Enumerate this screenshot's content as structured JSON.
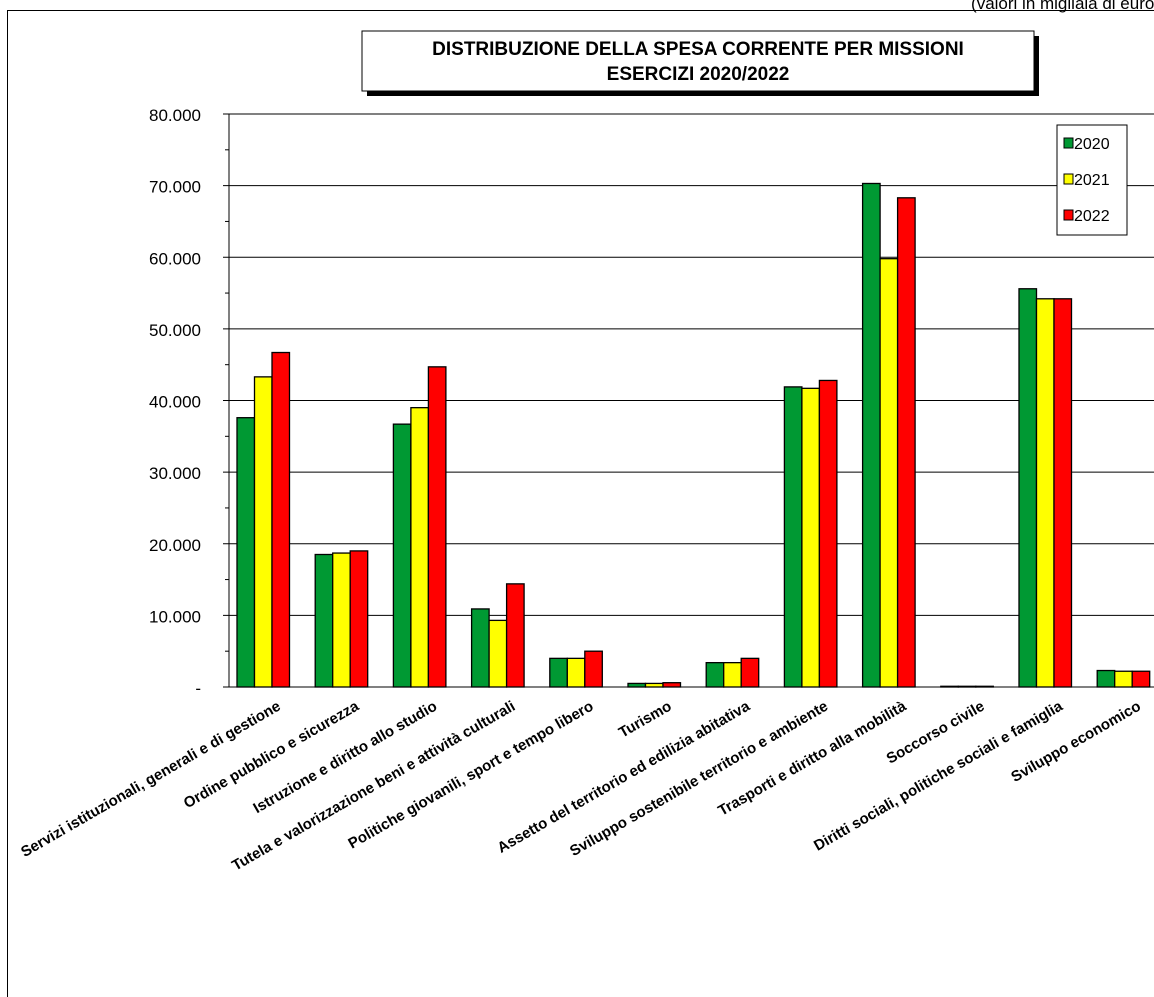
{
  "note": "(valori in migliaia di euro)",
  "chart_data": {
    "type": "bar",
    "title": "DISTRIBUZIONE DELLA SPESA CORRENTE PER MISSIONI\nESERCIZI 2020/2022",
    "xlabel": "",
    "ylabel": "",
    "ylim": [
      0,
      80000
    ],
    "yticks": [
      0,
      10000,
      20000,
      30000,
      40000,
      50000,
      60000,
      70000,
      80000
    ],
    "ytick_labels": [
      "-",
      "10.000",
      "20.000",
      "30.000",
      "40.000",
      "50.000",
      "60.000",
      "70.000",
      "80.000"
    ],
    "grid": true,
    "legend_position": "top-right",
    "categories": [
      "Servizi istituzionali, generali e di gestione",
      "Ordine pubblico e sicurezza",
      "Istruzione e diritto allo studio",
      "Tutela e valorizzazione beni e attività culturali",
      "Politiche giovanili, sport e tempo libero",
      "Turismo",
      "Assetto del territorio ed edilizia abitativa",
      "Sviluppo sostenibile territorio e ambiente",
      "Trasporti e diritto alla mobilità",
      "Soccorso civile",
      "Diritti sociali, politiche sociali e famiglia",
      "Sviluppo economico"
    ],
    "series": [
      {
        "name": "2020",
        "color": "#009933",
        "values": [
          37600,
          18500,
          36700,
          10900,
          4000,
          500,
          3400,
          41900,
          70300,
          100,
          55600,
          2300
        ]
      },
      {
        "name": "2021",
        "color": "#ffff00",
        "values": [
          43300,
          18700,
          39000,
          9300,
          4000,
          500,
          3400,
          41700,
          59800,
          100,
          54200,
          2200
        ]
      },
      {
        "name": "2022",
        "color": "#ff0000",
        "values": [
          46700,
          19000,
          44700,
          14400,
          5000,
          600,
          4000,
          42800,
          68300,
          100,
          54200,
          2200
        ]
      }
    ]
  }
}
